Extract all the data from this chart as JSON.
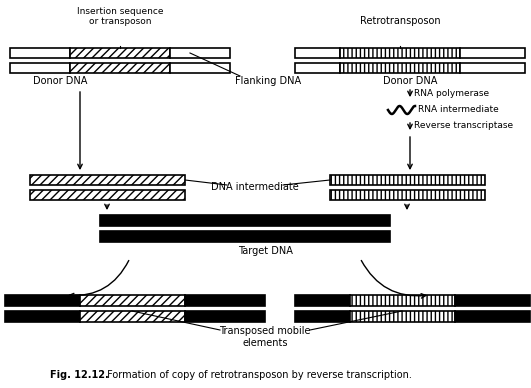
{
  "figsize": [
    5.31,
    3.88
  ],
  "dpi": 100,
  "bg_color": "#ffffff",
  "caption_bold": "Fig. 12.12.",
  "caption_rest": " Formation of copy of retrotransposon by reverse transcription.",
  "labels": {
    "insertion_sequence": "Insertion sequence\nor transposon",
    "retrotransposon": "Retrotransposon",
    "donor_dna_left": "Donor DNA",
    "flanking_dna": "Flanking DNA",
    "donor_dna_right": "Donor DNA",
    "rna_polymerase": "RNA polymerase",
    "rna_intermediate": "RNA intermediate",
    "reverse_transcriptase": "Reverse transcriptase",
    "dna_intermediate": "DNA intermediate",
    "target_dna": "Target DNA",
    "transposed": "Transposed mobile\nelements"
  }
}
